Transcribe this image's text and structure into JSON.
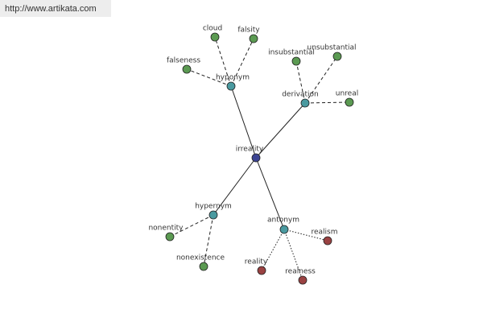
{
  "header": {
    "url": "http://www.artikata.com"
  },
  "nodes": [
    {
      "label": "irreality"
    },
    {
      "label": "hyponym"
    },
    {
      "label": "derivation"
    },
    {
      "label": "hypernym"
    },
    {
      "label": "antonym"
    },
    {
      "label": "cloud"
    },
    {
      "label": "falsity"
    },
    {
      "label": "falseness"
    },
    {
      "label": "insubstantial"
    },
    {
      "label": "unsubstantial"
    },
    {
      "label": "unreal"
    },
    {
      "label": "nonentity"
    },
    {
      "label": "nonexistence"
    },
    {
      "label": "realism"
    },
    {
      "label": "reality"
    },
    {
      "label": "realness"
    }
  ]
}
